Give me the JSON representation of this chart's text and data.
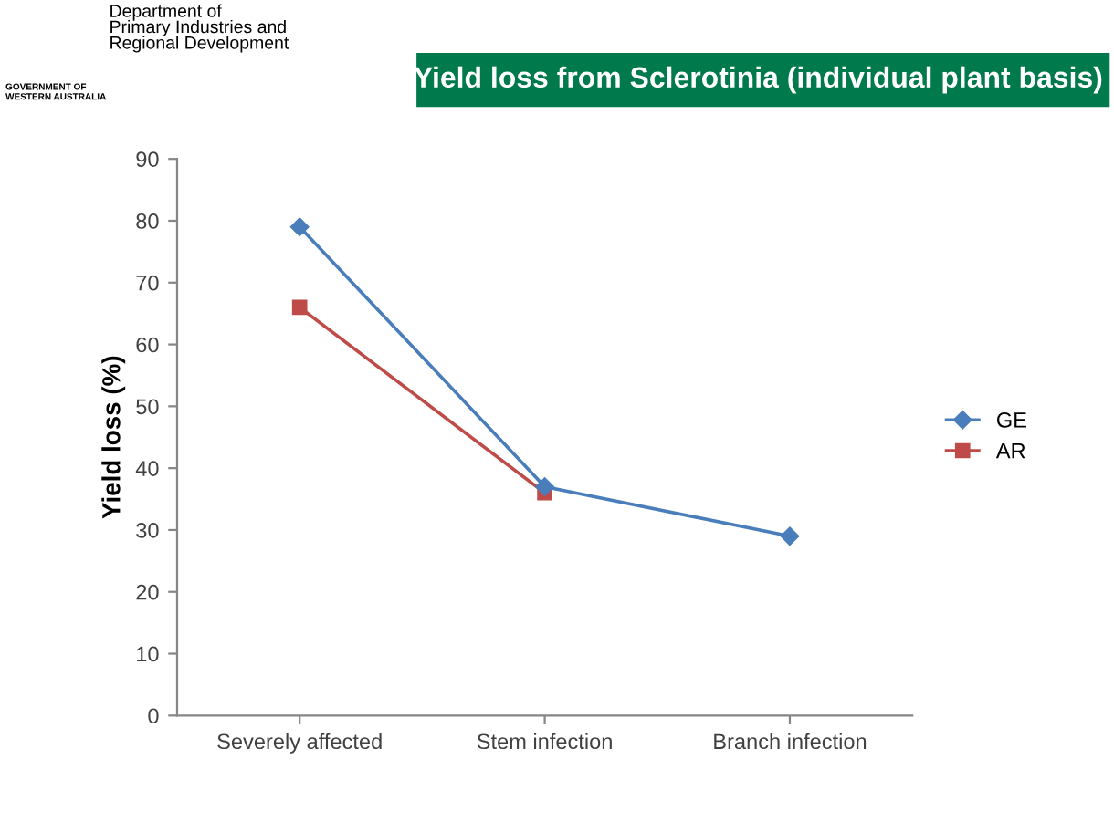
{
  "chart_data": {
    "type": "line",
    "title": "Yield loss from Sclerotinia (individual plant basis)",
    "ylabel": "Yield loss (%)",
    "annotations": [
      "Department of\nPrimary Industries and\nRegional Development",
      "GOVERNMENT OF\nWESTERN AUSTRALIA"
    ],
    "categories": [
      "Severely affected",
      "Stem infection",
      "Branch infection"
    ],
    "series": [
      {
        "name": "GE",
        "color": "#4a7ebb",
        "marker": "diamond",
        "values": [
          79,
          37,
          29
        ]
      },
      {
        "name": "AR",
        "color": "#be4b48",
        "marker": "square",
        "values": [
          66,
          36,
          null
        ]
      }
    ],
    "ylim": [
      0,
      90
    ],
    "yticks": [
      0,
      10,
      20,
      30,
      40,
      50,
      60,
      70,
      80,
      90
    ],
    "grid": false,
    "legend": "right"
  }
}
